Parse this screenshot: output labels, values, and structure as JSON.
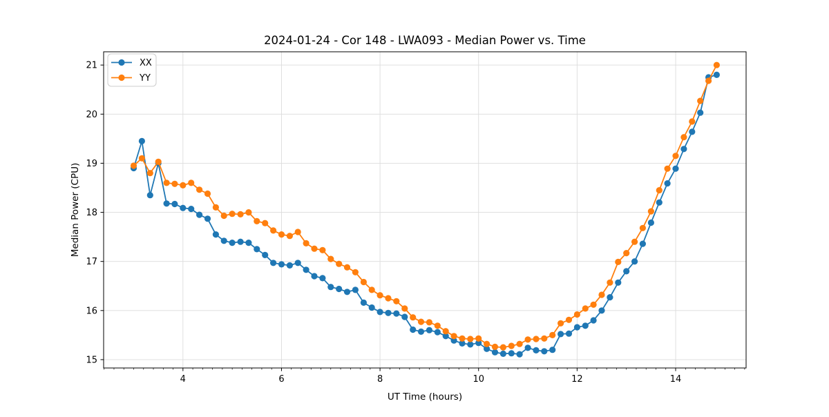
{
  "chart_data": {
    "type": "line",
    "title": "2024-01-24 - Cor 148 - LWA093 - Median Power vs. Time",
    "xlabel": "UT Time (hours)",
    "ylabel": "Median Power (CPU)",
    "xlim": [
      2.39,
      15.43
    ],
    "ylim": [
      14.83,
      21.27
    ],
    "x_ticks": [
      4,
      6,
      8,
      10,
      12,
      14
    ],
    "x_minor_tick_step": 0.2,
    "y_ticks": [
      15,
      16,
      17,
      18,
      19,
      20,
      21
    ],
    "grid": true,
    "grid_color": "#dcdcdc",
    "legend_position": "upper left",
    "x": [
      3.0,
      3.167,
      3.333,
      3.5,
      3.667,
      3.833,
      4.0,
      4.167,
      4.333,
      4.5,
      4.667,
      4.833,
      5.0,
      5.167,
      5.333,
      5.5,
      5.667,
      5.833,
      6.0,
      6.167,
      6.333,
      6.5,
      6.667,
      6.833,
      7.0,
      7.167,
      7.333,
      7.5,
      7.667,
      7.833,
      8.0,
      8.167,
      8.333,
      8.5,
      8.667,
      8.833,
      9.0,
      9.167,
      9.333,
      9.5,
      9.667,
      9.833,
      10.0,
      10.167,
      10.333,
      10.5,
      10.667,
      10.833,
      11.0,
      11.167,
      11.333,
      11.5,
      11.667,
      11.833,
      12.0,
      12.167,
      12.333,
      12.5,
      12.667,
      12.833,
      13.0,
      13.167,
      13.333,
      13.5,
      13.667,
      13.833,
      14.0,
      14.167,
      14.333,
      14.5,
      14.667,
      14.833
    ],
    "series": [
      {
        "name": "XX",
        "color": "#1f77b4",
        "values": [
          18.9,
          19.45,
          18.35,
          19.0,
          18.18,
          18.17,
          18.09,
          18.07,
          17.95,
          17.87,
          17.55,
          17.42,
          17.38,
          17.4,
          17.38,
          17.25,
          17.13,
          16.97,
          16.94,
          16.92,
          16.97,
          16.83,
          16.7,
          16.66,
          16.48,
          16.44,
          16.38,
          16.42,
          16.16,
          16.06,
          15.97,
          15.95,
          15.94,
          15.87,
          15.61,
          15.57,
          15.6,
          15.56,
          15.48,
          15.39,
          15.33,
          15.31,
          15.34,
          15.22,
          15.15,
          15.12,
          15.13,
          15.11,
          15.24,
          15.19,
          15.17,
          15.2,
          15.52,
          15.53,
          15.66,
          15.69,
          15.8,
          16.0,
          16.27,
          16.57,
          16.8,
          17.0,
          17.36,
          17.79,
          18.2,
          18.59,
          18.89,
          19.29,
          19.64,
          20.03,
          20.75,
          20.8
        ]
      },
      {
        "name": "YY",
        "color": "#ff7f0e",
        "values": [
          18.95,
          19.1,
          18.8,
          19.03,
          18.6,
          18.58,
          18.55,
          18.6,
          18.46,
          18.38,
          18.1,
          17.93,
          17.97,
          17.96,
          18.0,
          17.82,
          17.78,
          17.63,
          17.55,
          17.52,
          17.6,
          17.37,
          17.26,
          17.23,
          17.05,
          16.95,
          16.88,
          16.78,
          16.58,
          16.42,
          16.31,
          16.25,
          16.19,
          16.04,
          15.86,
          15.77,
          15.76,
          15.69,
          15.58,
          15.48,
          15.43,
          15.42,
          15.43,
          15.32,
          15.26,
          15.25,
          15.28,
          15.32,
          15.41,
          15.42,
          15.43,
          15.5,
          15.74,
          15.81,
          15.92,
          16.04,
          16.12,
          16.32,
          16.57,
          16.99,
          17.17,
          17.4,
          17.68,
          18.02,
          18.45,
          18.89,
          19.15,
          19.53,
          19.85,
          20.27,
          20.68,
          21.0
        ]
      }
    ]
  }
}
